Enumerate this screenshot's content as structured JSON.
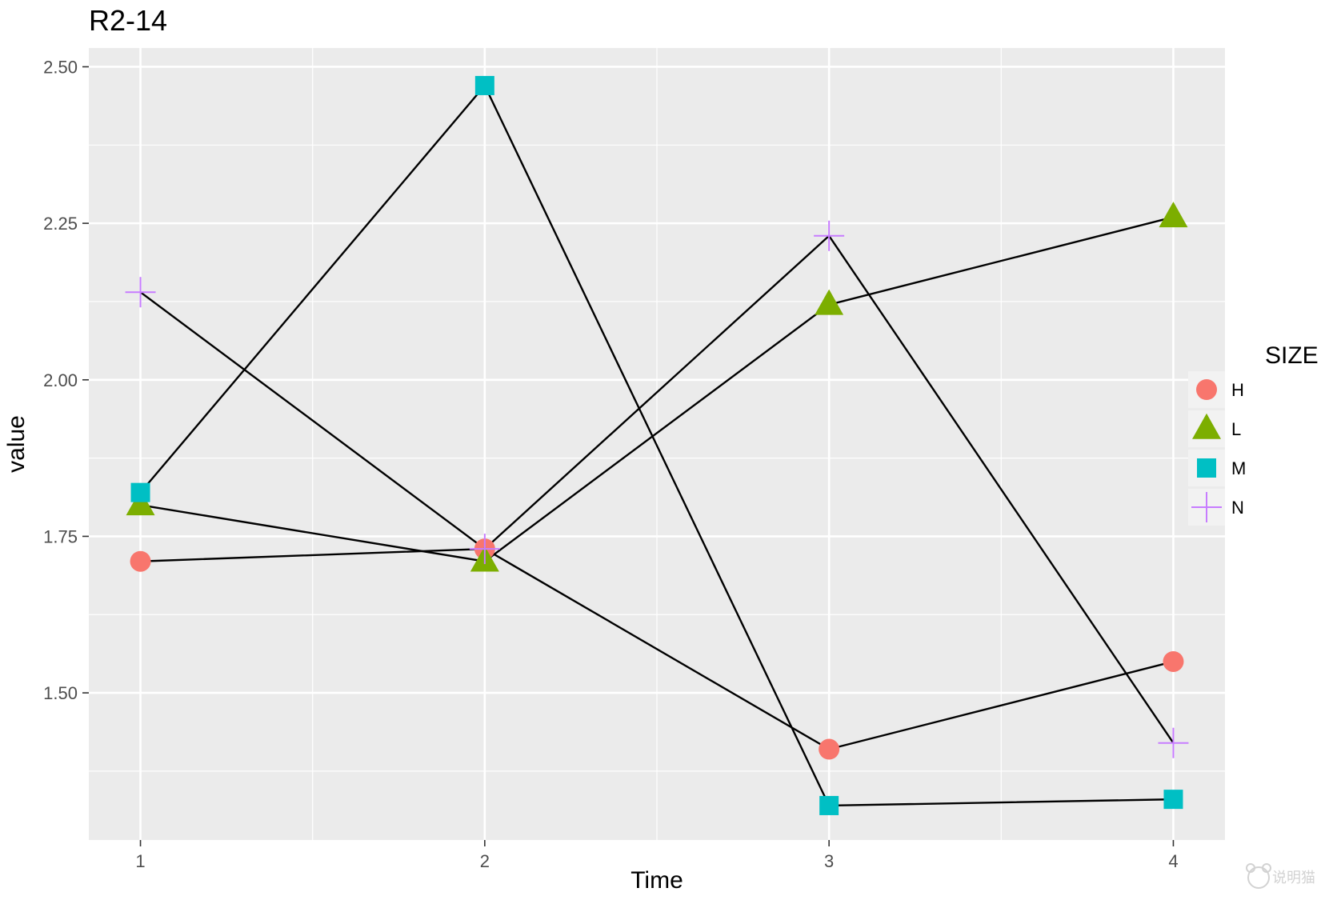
{
  "chart_data": {
    "type": "line",
    "title": "R2-14",
    "xlabel": "Time",
    "ylabel": "value",
    "x": [
      1,
      2,
      3,
      4
    ],
    "x_tick_labels": [
      "1",
      "2",
      "3",
      "4"
    ],
    "y_ticks": [
      1.5,
      1.75,
      2.0,
      2.25,
      2.5
    ],
    "y_tick_labels": [
      "1.50",
      "1.75",
      "2.00",
      "2.25",
      "2.50"
    ],
    "xlim": [
      0.85,
      4.15
    ],
    "ylim": [
      1.265,
      2.53
    ],
    "grid": true,
    "legend_title": "SIZE",
    "legend_position": "right",
    "line_color": "#000000",
    "panel_background": "#ebebeb",
    "series": [
      {
        "name": "H",
        "shape": "circle",
        "color": "#F8766D",
        "values": [
          1.71,
          1.73,
          1.41,
          1.55
        ]
      },
      {
        "name": "L",
        "shape": "triangle",
        "color": "#7CAE00",
        "values": [
          1.8,
          1.71,
          2.12,
          2.26
        ]
      },
      {
        "name": "M",
        "shape": "square",
        "color": "#00BFC4",
        "values": [
          1.82,
          2.47,
          1.32,
          1.33
        ]
      },
      {
        "name": "N",
        "shape": "cross",
        "color": "#C77CFF",
        "values": [
          2.14,
          1.73,
          2.23,
          1.42
        ]
      }
    ]
  },
  "watermark": {
    "icon": "bear-logo-icon",
    "text": "说明猫"
  }
}
